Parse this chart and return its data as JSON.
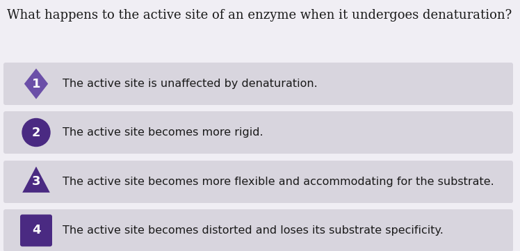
{
  "question": "What happens to the active site of an enzyme when it undergoes denaturation?",
  "answers": [
    "The active site is unaffected by denaturation.",
    "The active site becomes more rigid.",
    "The active site becomes more flexible and accommodating for the substrate.",
    "The active site becomes distorted and loses its substrate specificity."
  ],
  "badge_color_dark": "#4a2a82",
  "badge_color_light": "#6b4fa8",
  "answer_bg": "#d8d5de",
  "background_color": "#f0eef4",
  "text_color": "#1a1a1a",
  "question_fontsize": 13.0,
  "answer_fontsize": 11.5,
  "badge_number_color": "#ffffff"
}
